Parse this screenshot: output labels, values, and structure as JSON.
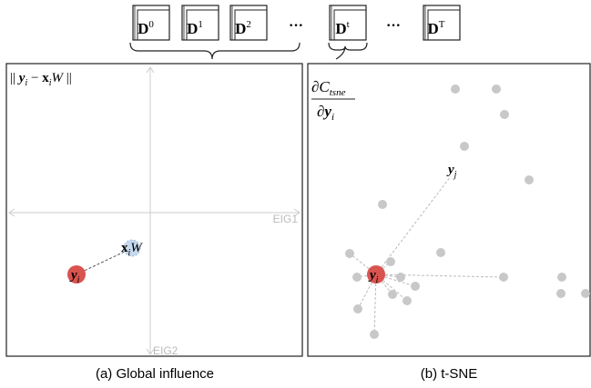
{
  "top_row": [
    {
      "base": "D",
      "sup": "0"
    },
    {
      "base": "D",
      "sup": "1"
    },
    {
      "base": "D",
      "sup": "2"
    },
    {
      "text": "···"
    },
    {
      "base": "D",
      "sup": "t"
    },
    {
      "text": "···"
    },
    {
      "base": "D",
      "sup": "T"
    }
  ],
  "panel_a": {
    "formula": {
      "open": "||",
      "y": "y",
      "y_sub": "i",
      "minus": "−",
      "x": "x",
      "x_sub": "i",
      "w": "W",
      "close": "||"
    },
    "x_axis": "EIG1",
    "y_axis": "EIG2",
    "point_y": {
      "base": "y",
      "sub": "i"
    },
    "point_x": {
      "base": "x",
      "sub": "i",
      "after": "W"
    },
    "caption": "(a) Global influence"
  },
  "panel_b": {
    "numerator": {
      "base": "∂C",
      "sub": "tsne"
    },
    "denominator": {
      "base": "∂y",
      "sub": "i"
    },
    "point_j": {
      "base": "y",
      "sub": "j"
    },
    "point_i": {
      "base": "y",
      "sub": "i"
    },
    "caption": "(b) t-SNE"
  }
}
